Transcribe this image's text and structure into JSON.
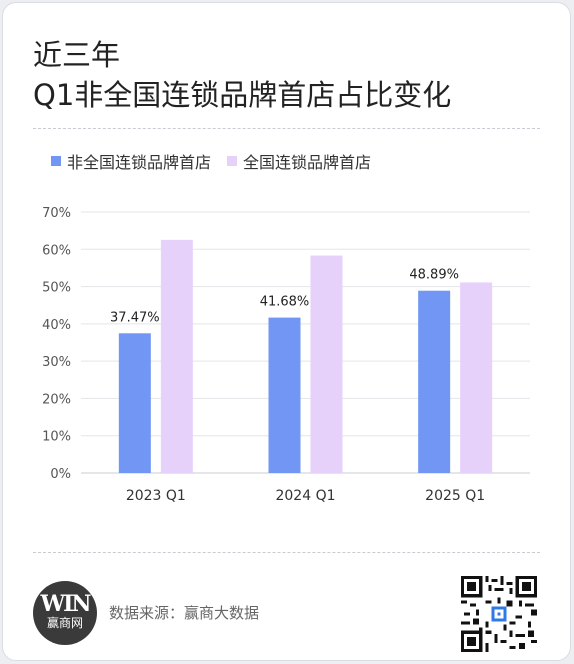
{
  "title": {
    "line1": "近三年",
    "line2": "Q1非全国连锁品牌首店占比变化"
  },
  "colors": {
    "series1": "#7196f3",
    "series2": "#e6d1fb",
    "grid": "#e3e5e8",
    "axis": "#c9ccd1"
  },
  "footer": {
    "logo_text": "赢商网",
    "logo_mark": "WIN",
    "source_label": "数据来源：",
    "source_value": "赢商大数据",
    "qr_icon": "qr-code-icon"
  },
  "chart_data": {
    "type": "bar",
    "categories": [
      "2023 Q1",
      "2024 Q1",
      "2025 Q1"
    ],
    "series": [
      {
        "name": "非全国连锁品牌首店",
        "values": [
          37.47,
          41.68,
          48.89
        ],
        "labels": [
          "37.47%",
          "41.68%",
          "48.89%"
        ]
      },
      {
        "name": "全国连锁品牌首店",
        "values": [
          62.53,
          58.32,
          51.11
        ]
      }
    ],
    "ylim": [
      0,
      70
    ],
    "yticks": [
      0,
      10,
      20,
      30,
      40,
      50,
      60,
      70
    ],
    "ytick_labels": [
      "0%",
      "10%",
      "20%",
      "30%",
      "40%",
      "50%",
      "60%",
      "70%"
    ],
    "grid": true,
    "legend": "top-left"
  }
}
